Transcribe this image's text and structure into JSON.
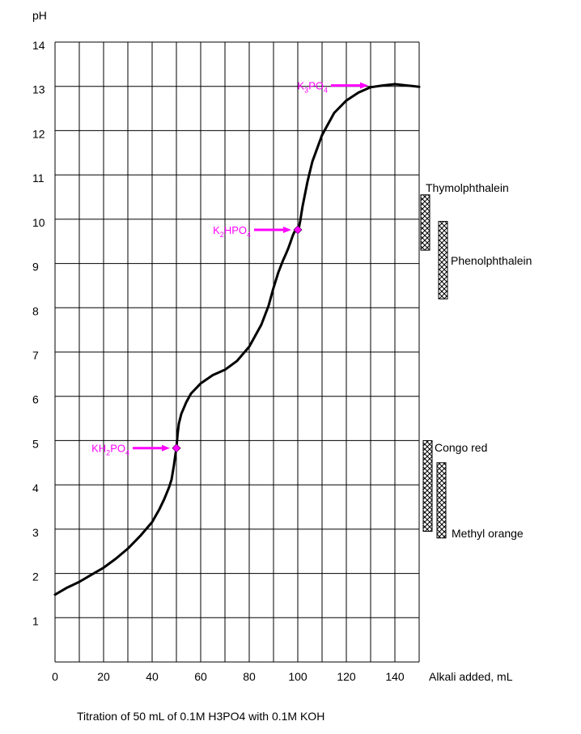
{
  "chart_data": {
    "type": "line",
    "title": "Titration of 50 mL of 0.1M H3PO4 with 0.1M KOH",
    "xlabel": "Alkali added, mL",
    "ylabel": "pH",
    "xlim": [
      0,
      150
    ],
    "ylim": [
      0,
      14
    ],
    "grid": true,
    "x_ticks": [
      0,
      20,
      40,
      60,
      80,
      100,
      120,
      140
    ],
    "y_ticks": [
      1,
      2,
      3,
      4,
      5,
      6,
      7,
      8,
      9,
      10,
      11,
      12,
      13,
      14
    ],
    "series": [
      {
        "name": "pH curve",
        "color": "#000000",
        "x": [
          0,
          5,
          10,
          15,
          20,
          25,
          30,
          35,
          40,
          43,
          45,
          47,
          48,
          49,
          49.5,
          50,
          50.5,
          51,
          52,
          54,
          56,
          60,
          65,
          70,
          75,
          80,
          85,
          88,
          90,
          92,
          94,
          95,
          96,
          97,
          97.5,
          98,
          98.5,
          99,
          99.5,
          100,
          100.5,
          101,
          102,
          104,
          106,
          110,
          115,
          120,
          125,
          130,
          135,
          140,
          145,
          150
        ],
        "y": [
          1.52,
          1.68,
          1.81,
          1.97,
          2.13,
          2.33,
          2.56,
          2.84,
          3.16,
          3.45,
          3.68,
          3.95,
          4.12,
          4.45,
          4.65,
          4.83,
          5.15,
          5.38,
          5.6,
          5.86,
          6.06,
          6.29,
          6.48,
          6.6,
          6.8,
          7.12,
          7.62,
          8.05,
          8.45,
          8.8,
          9.08,
          9.2,
          9.33,
          9.48,
          9.56,
          9.64,
          9.7,
          9.74,
          9.75,
          9.76,
          9.82,
          9.96,
          10.3,
          10.85,
          11.3,
          11.9,
          12.4,
          12.68,
          12.86,
          12.98,
          13.02,
          13.05,
          13.02,
          12.99
        ]
      }
    ],
    "annotations": [
      {
        "label": "KH2PO4",
        "main": "KH",
        "sub1": "2",
        "mid": "PO",
        "sub2": "4",
        "x": 50,
        "y": 4.83,
        "marker": true
      },
      {
        "label": "K2HPO4",
        "main": "K",
        "sub1": "2",
        "mid": "HPO",
        "sub2": "4",
        "x": 100,
        "y": 9.76,
        "marker": true
      },
      {
        "label": "K3PO4",
        "main": "K",
        "sub1": "3",
        "mid": "PO",
        "sub2": "4",
        "x": 129,
        "y": 13.02,
        "marker": false
      }
    ],
    "indicators": [
      {
        "name": "Thymolphthalein",
        "ph_low": 9.3,
        "ph_high": 10.55
      },
      {
        "name": "Phenolphthalein",
        "ph_low": 8.2,
        "ph_high": 9.95
      },
      {
        "name": "Congo red",
        "ph_low": 2.95,
        "ph_high": 5.0
      },
      {
        "name": "Methyl orange",
        "ph_low": 2.8,
        "ph_high": 4.5
      }
    ],
    "colors": {
      "curve": "#000000",
      "annotation": "#ff00ff",
      "grid": "#000000"
    }
  }
}
